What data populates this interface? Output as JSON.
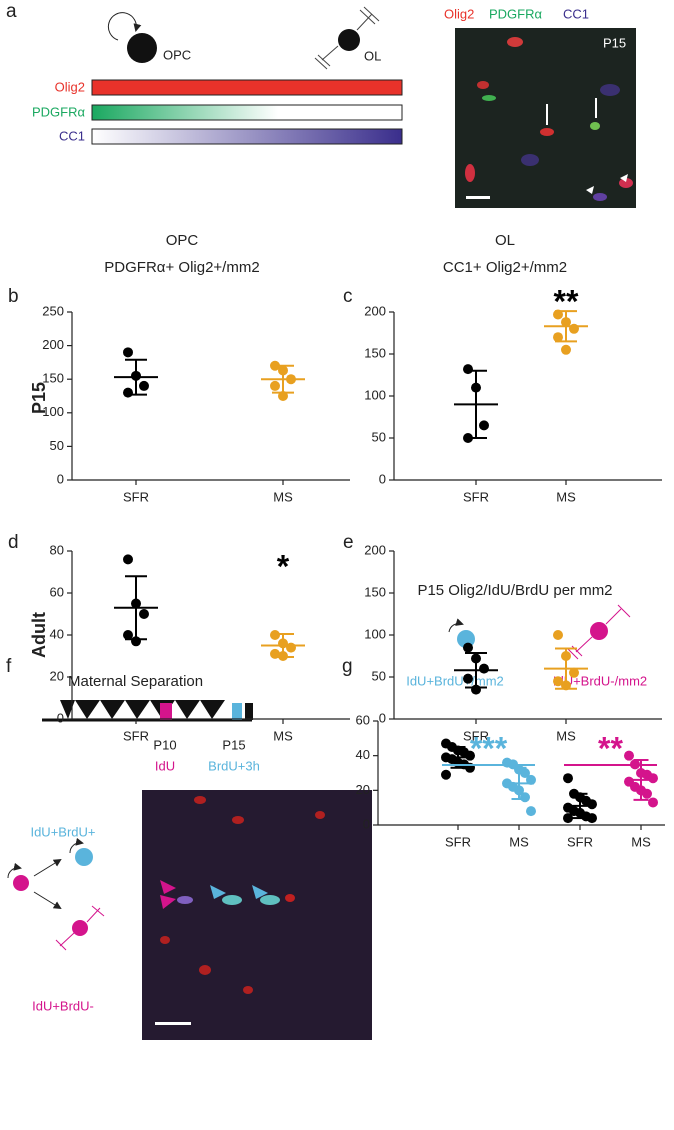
{
  "panel_a": {
    "label": "a",
    "markers": [
      "Olig2",
      "PDGFRα",
      "CC1"
    ],
    "marker_colors": [
      "#e8322a",
      "#1aa860",
      "#3a2e8c"
    ],
    "cells": [
      "OPC",
      "OL"
    ],
    "image_label": "P15"
  },
  "column_titles": [
    {
      "line1": "OPC",
      "line2": "PDGFRα+ Olig2+/mm2"
    },
    {
      "line1": "OL",
      "line2": "CC1+ Olig2+/mm2"
    }
  ],
  "row_labels": [
    "P15",
    "Adult"
  ],
  "panel_f": {
    "label": "f",
    "title": "Maternal Separation",
    "events": [
      {
        "day": "P10",
        "label": "IdU",
        "color": "#d4148c"
      },
      {
        "day": "P15",
        "label": "BrdU+3h",
        "color": "#5ab4dc"
      }
    ],
    "fates": [
      "IdU+BrdU+",
      "IdU+BrdU-"
    ]
  },
  "chart_data": [
    {
      "type": "dot",
      "panel": "b",
      "categories": [
        "SFR",
        "MS"
      ],
      "colors": [
        "#000000",
        "#e8a020"
      ],
      "points": [
        [
          190,
          155,
          140,
          130
        ],
        [
          170,
          163,
          150,
          140,
          125
        ]
      ],
      "means": [
        153,
        150
      ],
      "errors": [
        26,
        20
      ],
      "ylim": [
        0,
        250
      ],
      "yticks": [
        0,
        50,
        100,
        150,
        200,
        250
      ]
    },
    {
      "type": "dot",
      "panel": "c",
      "categories": [
        "SFR",
        "MS"
      ],
      "colors": [
        "#000000",
        "#e8a020"
      ],
      "points": [
        [
          132,
          110,
          65,
          50
        ],
        [
          197,
          188,
          180,
          170,
          155
        ]
      ],
      "means": [
        90,
        183
      ],
      "errors": [
        40,
        18
      ],
      "ylim": [
        0,
        200
      ],
      "yticks": [
        0,
        50,
        100,
        150,
        200
      ],
      "annotations": [
        {
          "text": "**",
          "color": "#000000",
          "span": [
            1,
            1
          ]
        }
      ]
    },
    {
      "type": "dot",
      "panel": "d",
      "categories": [
        "SFR",
        "MS"
      ],
      "colors": [
        "#000000",
        "#e8a020"
      ],
      "points": [
        [
          76,
          55,
          50,
          40,
          37
        ],
        [
          40,
          36,
          34,
          31,
          30
        ]
      ],
      "means": [
        53,
        35
      ],
      "errors": [
        15,
        5.5
      ],
      "ylim": [
        0,
        80
      ],
      "yticks": [
        0,
        20,
        40,
        60,
        80
      ],
      "annotations": [
        {
          "text": "*",
          "color": "#000000",
          "span": [
            1,
            1
          ]
        }
      ]
    },
    {
      "type": "dot",
      "panel": "e",
      "categories": [
        "SFR",
        "MS"
      ],
      "colors": [
        "#000000",
        "#e8a020"
      ],
      "points": [
        [
          85,
          72,
          60,
          48,
          35
        ],
        [
          100,
          75,
          55,
          45,
          40
        ]
      ],
      "means": [
        58,
        60
      ],
      "errors": [
        20.5,
        24
      ],
      "ylim": [
        0,
        200
      ],
      "yticks": [
        0,
        50,
        100,
        150,
        200
      ]
    },
    {
      "type": "dot",
      "panel": "g",
      "title": "P15 Olig2/IdU/BrdU per mm2",
      "group_labels": [
        "IdU+BrdU+/mm2",
        "IdU+BrdU-/mm2"
      ],
      "categories": [
        "SFR",
        "MS",
        "SFR",
        "MS"
      ],
      "colors": [
        "#000000",
        "#5ab4dc",
        "#000000",
        "#d4148c"
      ],
      "points": [
        [
          47,
          45,
          43,
          42,
          40,
          39,
          38,
          36,
          35,
          33,
          29
        ],
        [
          36,
          35,
          32,
          30,
          26,
          24,
          22,
          20,
          16,
          8
        ],
        [
          27,
          18,
          16,
          14,
          12,
          10,
          8,
          7,
          5,
          4,
          4
        ],
        [
          40,
          35,
          30,
          29,
          27,
          25,
          22,
          20,
          18,
          13
        ]
      ],
      "means": [
        39,
        24,
        11,
        26
      ],
      "errors": [
        6,
        9,
        7,
        11.5
      ],
      "ylim": [
        0,
        60
      ],
      "yticks": [
        0,
        20,
        40,
        60
      ],
      "annotations": [
        {
          "text": "***",
          "color": "#5ab4dc",
          "span": [
            0,
            1
          ]
        },
        {
          "text": "**",
          "color": "#d4148c",
          "span": [
            2,
            3
          ]
        }
      ]
    }
  ]
}
